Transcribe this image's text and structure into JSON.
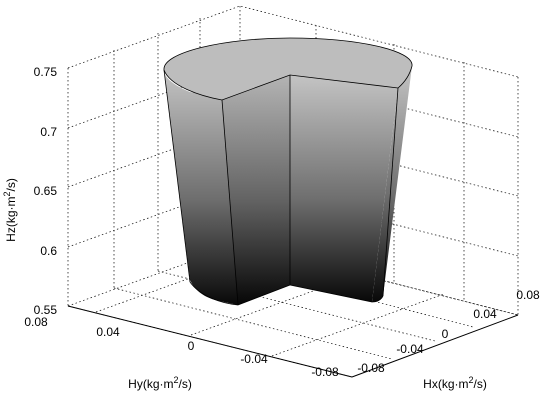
{
  "chart_data": {
    "type": "surface3d",
    "description_shape": "cylinder with one quadrant removed",
    "z_axis": {
      "label": "Hz(kg·m²/s)",
      "label_main": "Hz(kg·m",
      "label_sup": "2",
      "label_tail": "/s)",
      "ticks": [
        "0.55",
        "0.6",
        "0.65",
        "0.7",
        "0.75"
      ],
      "range": [
        0.55,
        0.75
      ]
    },
    "y_axis": {
      "label": "Hy(kg·m²/s)",
      "label_main": "Hy(kg·m",
      "label_sup": "2",
      "label_tail": "/s)",
      "ticks": [
        "0.08",
        "0.04",
        "0",
        "-0.04",
        "-0.08"
      ],
      "range": [
        -0.08,
        0.08
      ]
    },
    "x_axis": {
      "label": "Hx(kg·m²/s)",
      "label_main": "Hx(kg·m",
      "label_sup": "2",
      "label_tail": "/s)",
      "ticks": [
        "-0.08",
        "-0.04",
        "0",
        "0.04",
        "0.08"
      ],
      "range": [
        -0.08,
        0.08
      ]
    },
    "surface": {
      "radius": 0.08,
      "z_min": 0.55,
      "z_max": 0.75,
      "removed_quadrant": "Hx<0, Hy<0",
      "colormap": "gray"
    },
    "grid": true,
    "box": false
  }
}
